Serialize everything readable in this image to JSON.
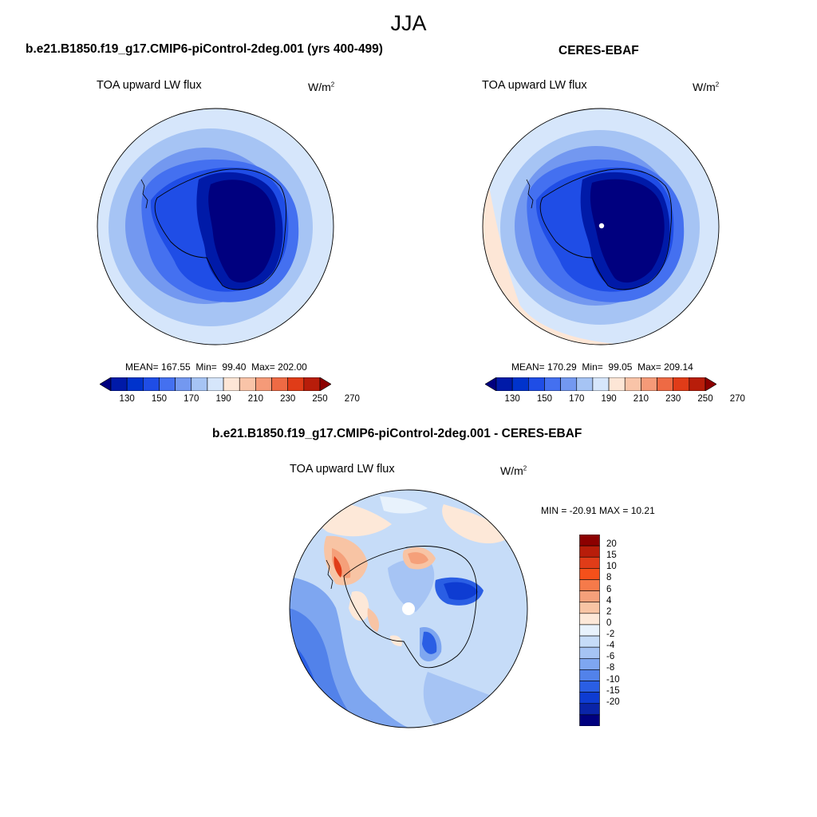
{
  "season": "JJA",
  "panels": [
    {
      "title": "b.e21.B1850.f19_g17.CMIP6-piControl-2deg.001 (yrs 400-499)",
      "variable": "TOA upward LW flux",
      "units_base": "W/m",
      "units_exp": "2",
      "mean_label": "MEAN=",
      "mean": "167.55",
      "min_label": "Min=",
      "min": "99.40",
      "max_label": "Max=",
      "max": "202.00"
    },
    {
      "title": "CERES-EBAF",
      "variable": "TOA upward LW flux",
      "units_base": "W/m",
      "units_exp": "2",
      "mean_label": "MEAN=",
      "mean": "170.29",
      "min_label": "Min=",
      "min": "99.05",
      "max_label": "Max=",
      "max": "209.14"
    }
  ],
  "diff": {
    "title": "b.e21.B1850.f19_g17.CMIP6-piControl-2deg.001 - CERES-EBAF",
    "variable": "TOA upward LW flux",
    "units_base": "W/m",
    "units_exp": "2",
    "minmax": "MIN = -20.91 MAX =  10.21"
  },
  "colorbar_abs": {
    "ticks": [
      "130",
      "150",
      "170",
      "190",
      "210",
      "230",
      "250",
      "270"
    ],
    "colors": [
      "#00007f",
      "#001aa8",
      "#0033cc",
      "#1f4de6",
      "#4470f0",
      "#7398f0",
      "#a6c4f4",
      "#d6e6fb",
      "#fde6d6",
      "#f9c4a8",
      "#f59a78",
      "#ee6a44",
      "#e03c18",
      "#b81d0a",
      "#8c0000"
    ]
  },
  "colorbar_diff": {
    "ticks": [
      "20",
      "15",
      "10",
      "8",
      "6",
      "4",
      "2",
      "0",
      "-2",
      "-4",
      "-6",
      "-8",
      "-10",
      "-15",
      "-20"
    ],
    "colors": [
      "#8c0000",
      "#b81d0a",
      "#e03c18",
      "#f5501a",
      "#f57a4a",
      "#f5a07a",
      "#f8c4a4",
      "#fde8d8",
      "#e8f2fc",
      "#c6dcf8",
      "#a6c4f4",
      "#7ea6f0",
      "#5282ea",
      "#2a5ee4",
      "#0e3cd2",
      "#0a24a8",
      "#00007f"
    ]
  }
}
